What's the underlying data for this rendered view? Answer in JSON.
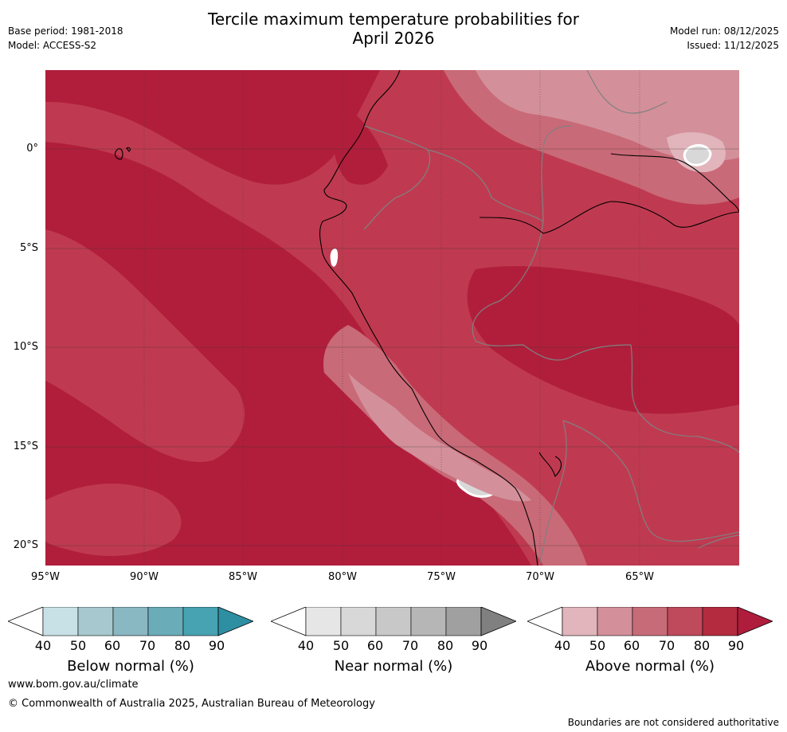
{
  "header": {
    "title_line1": "Tercile maximum temperature probabilities for",
    "title_line2": "April 2026",
    "base_period": "Base period: 1981-2018",
    "model": "Model: ACCESS-S2",
    "model_run": "Model run: 08/12/2025",
    "issued": "Issued: 11/12/2025"
  },
  "map": {
    "lat_labels": [
      "0°",
      "5°S",
      "10°S",
      "15°S",
      "20°S"
    ],
    "lon_labels": [
      "95°W",
      "90°W",
      "85°W",
      "80°W",
      "75°W",
      "70°W",
      "65°W"
    ]
  },
  "legend": {
    "ticks": [
      "40",
      "50",
      "60",
      "70",
      "80",
      "90"
    ],
    "below": {
      "title": "Below normal (%)",
      "colors": [
        "#ffffff",
        "#c8e1e6",
        "#a6c8ce",
        "#89b7c2",
        "#6aacb8",
        "#47a2b1",
        "#2e8fa3"
      ]
    },
    "near": {
      "title": "Near normal (%)",
      "colors": [
        "#ffffff",
        "#e6e6e6",
        "#d8d8d8",
        "#c8c8c8",
        "#b6b6b6",
        "#a0a0a0",
        "#808080"
      ]
    },
    "above": {
      "title": "Above normal (%)",
      "colors": [
        "#ffffff",
        "#e1b5bb",
        "#d3909a",
        "#c76b78",
        "#bf4a5c",
        "#b42b40",
        "#b01d3c"
      ]
    }
  },
  "footer": {
    "url": "www.bom.gov.au/climate",
    "copyright": "© Commonwealth of Australia 2025, Australian Bureau of Meteorology",
    "disclaimer": "Boundaries are not considered authoritative"
  }
}
